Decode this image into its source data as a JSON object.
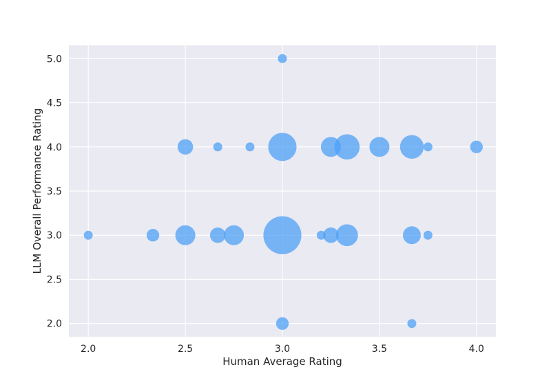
{
  "chart_data": {
    "type": "scatter",
    "title": "",
    "xlabel": "Human Average Rating",
    "ylabel": "LLM Overall Performance Rating",
    "xlim": [
      1.9,
      4.1
    ],
    "ylim": [
      1.85,
      5.15
    ],
    "x_ticks": [
      "2.0",
      "2.5",
      "3.0",
      "3.5",
      "4.0"
    ],
    "y_ticks": [
      "2.0",
      "2.5",
      "3.0",
      "3.5",
      "4.0",
      "4.5",
      "5.0"
    ],
    "grid": true,
    "background_color": "#eaeaf2",
    "grid_color": "#ffffff",
    "marker_color": "#4da0f5",
    "points": [
      {
        "x": 3.0,
        "y": 5.0,
        "size": 1
      },
      {
        "x": 2.5,
        "y": 4.0,
        "size": 3
      },
      {
        "x": 2.667,
        "y": 4.0,
        "size": 1
      },
      {
        "x": 2.833,
        "y": 4.0,
        "size": 1
      },
      {
        "x": 3.0,
        "y": 4.0,
        "size": 10
      },
      {
        "x": 3.25,
        "y": 4.0,
        "size": 5
      },
      {
        "x": 3.333,
        "y": 4.0,
        "size": 8
      },
      {
        "x": 3.5,
        "y": 4.0,
        "size": 5
      },
      {
        "x": 3.667,
        "y": 4.0,
        "size": 7
      },
      {
        "x": 3.75,
        "y": 4.0,
        "size": 1
      },
      {
        "x": 4.0,
        "y": 4.0,
        "size": 2
      },
      {
        "x": 2.0,
        "y": 3.0,
        "size": 1
      },
      {
        "x": 2.333,
        "y": 3.0,
        "size": 2
      },
      {
        "x": 2.5,
        "y": 3.0,
        "size": 5
      },
      {
        "x": 2.667,
        "y": 3.0,
        "size": 3
      },
      {
        "x": 2.75,
        "y": 3.0,
        "size": 5
      },
      {
        "x": 3.0,
        "y": 3.0,
        "size": 18
      },
      {
        "x": 3.2,
        "y": 3.0,
        "size": 1
      },
      {
        "x": 3.25,
        "y": 3.0,
        "size": 3
      },
      {
        "x": 3.333,
        "y": 3.0,
        "size": 6
      },
      {
        "x": 3.667,
        "y": 3.0,
        "size": 4
      },
      {
        "x": 3.75,
        "y": 3.0,
        "size": 1
      },
      {
        "x": 3.0,
        "y": 2.0,
        "size": 2
      },
      {
        "x": 3.667,
        "y": 2.0,
        "size": 1
      }
    ]
  }
}
